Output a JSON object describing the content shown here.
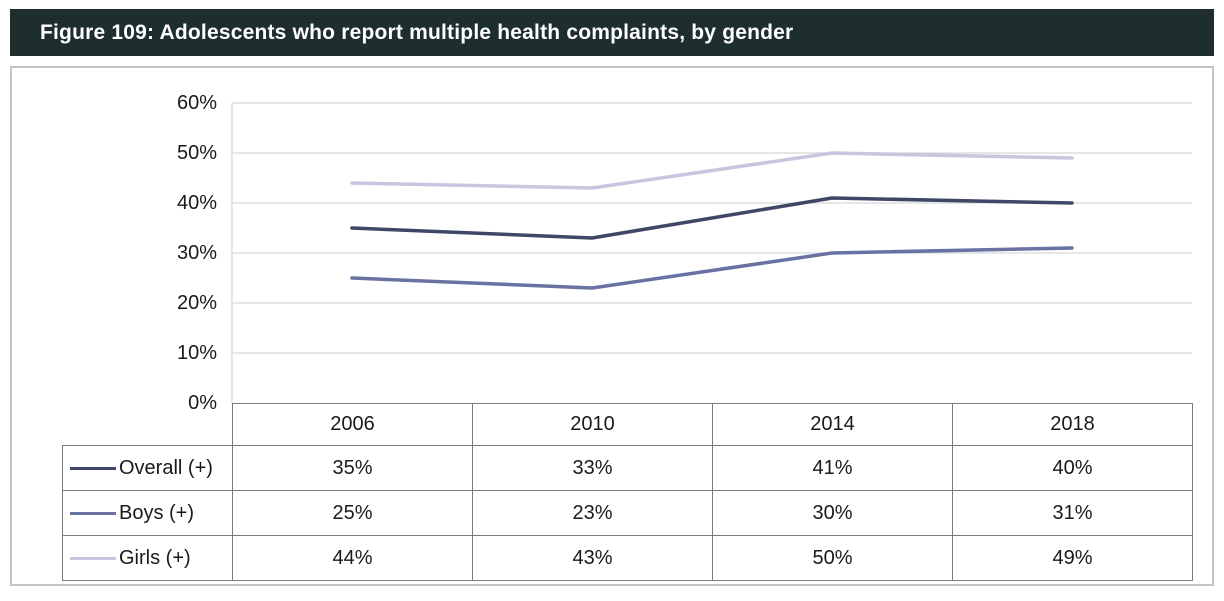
{
  "figure": {
    "title": "Figure 109: Adolescents who report multiple health complaints, by gender"
  },
  "chart_data": {
    "type": "line",
    "title": "Figure 109: Adolescents who report multiple health complaints, by gender",
    "categories": [
      "2006",
      "2010",
      "2014",
      "2018"
    ],
    "series": [
      {
        "name": "Overall (+)",
        "values": [
          35,
          33,
          41,
          40
        ],
        "color": "#3f4767"
      },
      {
        "name": "Boys (+)",
        "values": [
          25,
          23,
          30,
          31
        ],
        "color": "#6872a3"
      },
      {
        "name": "Girls (+)",
        "values": [
          44,
          43,
          50,
          49
        ],
        "color": "#c6c6de"
      }
    ],
    "xlabel": "",
    "ylabel": "",
    "ylim": [
      0,
      60
    ],
    "ytick_step": 10,
    "ytick_labels": [
      "0%",
      "10%",
      "20%",
      "30%",
      "40%",
      "50%",
      "60%"
    ],
    "value_suffix": "%",
    "grid": true,
    "legend_position": "table-left"
  },
  "table": {
    "header": [
      "2006",
      "2010",
      "2014",
      "2018"
    ],
    "rows": [
      {
        "label": "Overall (+)",
        "values": [
          "35%",
          "33%",
          "41%",
          "40%"
        ]
      },
      {
        "label": "Boys (+)",
        "values": [
          "25%",
          "23%",
          "30%",
          "31%"
        ]
      },
      {
        "label": "Girls (+)",
        "values": [
          "44%",
          "43%",
          "50%",
          "49%"
        ]
      }
    ]
  },
  "colors": {
    "header_bg": "#1e2d2e",
    "header_text": "#ffffff",
    "grid": "#d6d6d6",
    "axis": "#d6d6d6",
    "table_border": "#7a7a7a"
  }
}
